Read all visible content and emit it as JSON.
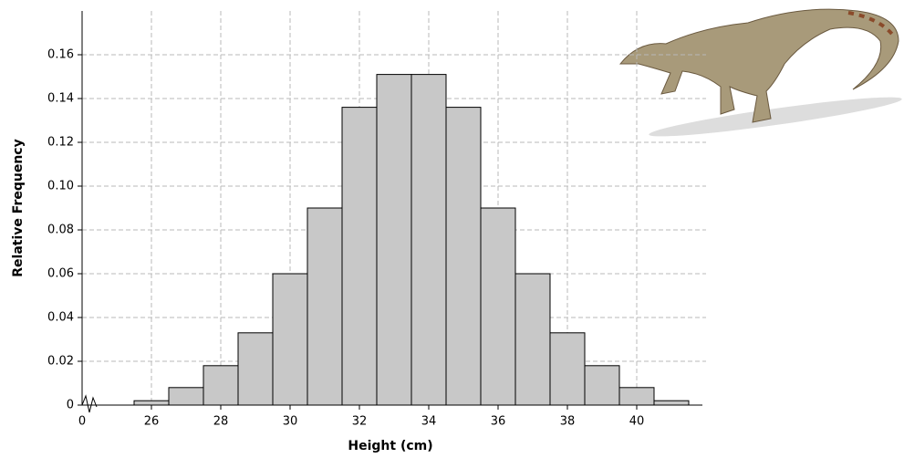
{
  "chart_data": {
    "type": "histogram",
    "x_label": "Height (cm)",
    "y_label": "Relative Frequency",
    "bins": [
      25.5,
      26.5,
      27.5,
      28.5,
      29.5,
      30.5,
      31.5,
      32.5,
      33.5,
      34.5,
      35.5,
      36.5,
      37.5,
      38.5,
      39.5,
      40.5,
      41.5
    ],
    "values": [
      0.002,
      0.008,
      0.018,
      0.033,
      0.06,
      0.09,
      0.136,
      0.151,
      0.151,
      0.136,
      0.09,
      0.06,
      0.033,
      0.018,
      0.008,
      0.002
    ],
    "color": "#c8c8c8",
    "xlim": [
      24,
      42
    ],
    "xticks": [
      26,
      28,
      30,
      32,
      34,
      36,
      38,
      40
    ],
    "axis_break_label": "0",
    "ylim": [
      0,
      0.18
    ],
    "yticks": [
      0,
      0.02,
      0.04,
      0.06,
      0.08,
      {
        "value": 0.1,
        "label": "0.10"
      },
      0.12,
      0.14,
      0.16
    ],
    "grid": true
  }
}
